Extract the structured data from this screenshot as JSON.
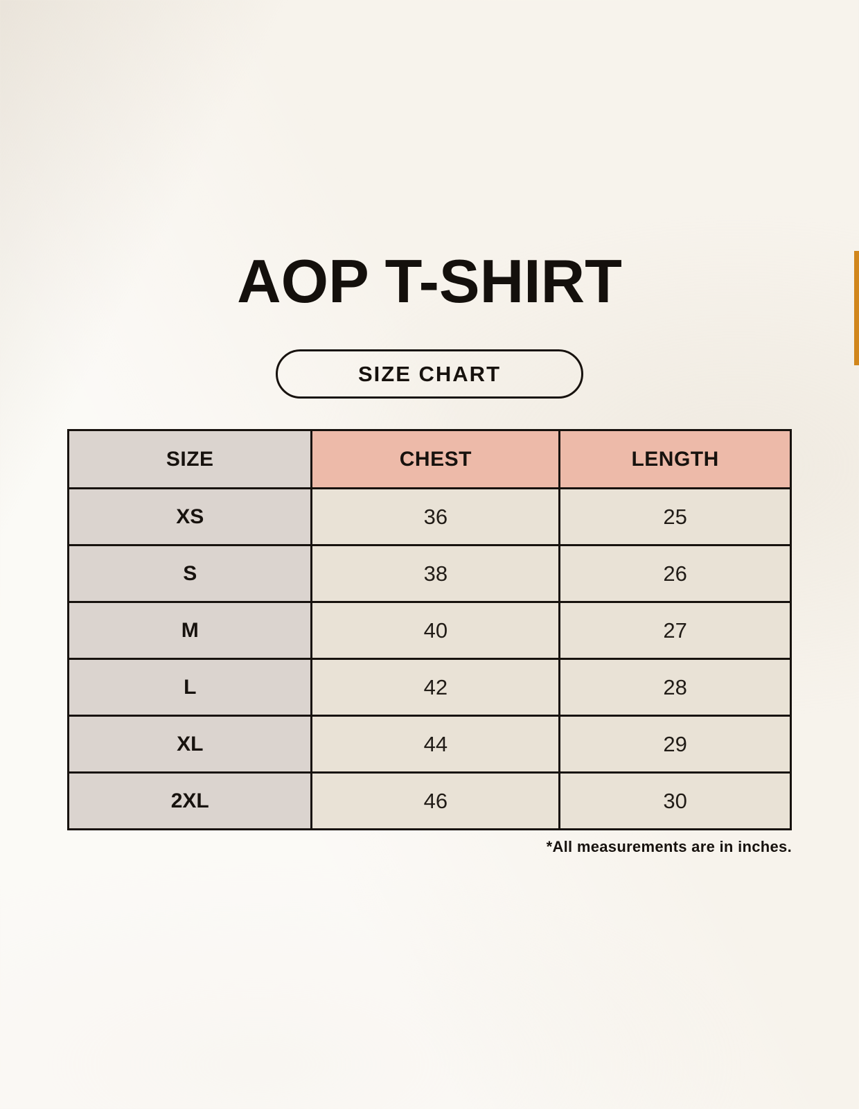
{
  "page": {
    "title": "AOP T-SHIRT",
    "button_label": "SIZE CHART",
    "footnote": "*All measurements are in inches."
  },
  "colors": {
    "background": "#f7f3ec",
    "accent_bar": "#d1861c",
    "size_column_bg": "#dbd4cf",
    "measure_header_bg": "#edbaa9",
    "value_cell_bg": "#e9e2d6",
    "table_border": "#17120e",
    "text": "#14100c"
  },
  "chart_data": {
    "type": "table",
    "title": "AOP T-SHIRT",
    "subtitle": "SIZE CHART",
    "units": "inches",
    "columns": [
      "SIZE",
      "CHEST",
      "LENGTH"
    ],
    "rows": [
      [
        "XS",
        "36",
        "25"
      ],
      [
        "S",
        "38",
        "26"
      ],
      [
        "M",
        "40",
        "27"
      ],
      [
        "L",
        "42",
        "28"
      ],
      [
        "XL",
        "44",
        "29"
      ],
      [
        "2XL",
        "46",
        "30"
      ]
    ],
    "footnote": "*All measurements are in inches."
  }
}
